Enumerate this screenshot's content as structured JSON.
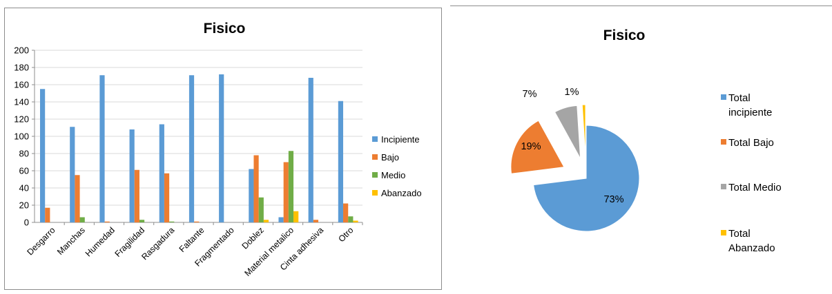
{
  "chart_data": [
    {
      "type": "bar",
      "title": "Fisico",
      "categories": [
        "Desgarro",
        "Manchas",
        "Humedad",
        "Fragilidad",
        "Rasgadura",
        "Faltante",
        "Fragmentado",
        "Doblez",
        "Material metalico",
        "Cinta adhesiva",
        "Otro"
      ],
      "series": [
        {
          "name": "Incipiente",
          "color": "#5b9bd5",
          "values": [
            155,
            111,
            171,
            108,
            114,
            171,
            172,
            62,
            6,
            168,
            141
          ]
        },
        {
          "name": "Bajo",
          "color": "#ed7d31",
          "values": [
            17,
            55,
            1,
            61,
            57,
            1,
            0,
            78,
            70,
            3,
            22
          ]
        },
        {
          "name": "Medio",
          "color": "#70ad47",
          "values": [
            0,
            6,
            0,
            3,
            1,
            0,
            0,
            29,
            83,
            0,
            7
          ]
        },
        {
          "name": "Abanzado",
          "color": "#ffc000",
          "values": [
            0,
            0,
            0,
            0,
            0,
            0,
            0,
            3,
            13,
            0,
            2
          ]
        }
      ],
      "ylim": [
        0,
        200
      ],
      "yticks": [
        "0",
        "20",
        "40",
        "60",
        "80",
        "100",
        "120",
        "140",
        "160",
        "180",
        "200"
      ],
      "grid": true,
      "legend": "right"
    },
    {
      "type": "pie",
      "title": "Fisico",
      "slices": [
        {
          "name": "Total incipiente",
          "legend_lines": [
            "Total",
            "incipiente"
          ],
          "value": 73,
          "label": "73%",
          "color": "#5b9bd5"
        },
        {
          "name": "Total Bajo",
          "legend_lines": [
            "Total Bajo"
          ],
          "value": 19,
          "label": "19%",
          "color": "#ed7d31"
        },
        {
          "name": "Total Medio",
          "legend_lines": [
            "Total Medio"
          ],
          "value": 7,
          "label": "7%",
          "color": "#a5a5a5"
        },
        {
          "name": "Total Abanzado",
          "legend_lines": [
            "Total",
            "Abanzado"
          ],
          "value": 1,
          "label": "1%",
          "color": "#ffc000"
        }
      ],
      "exploded": true,
      "legend": "right"
    }
  ]
}
